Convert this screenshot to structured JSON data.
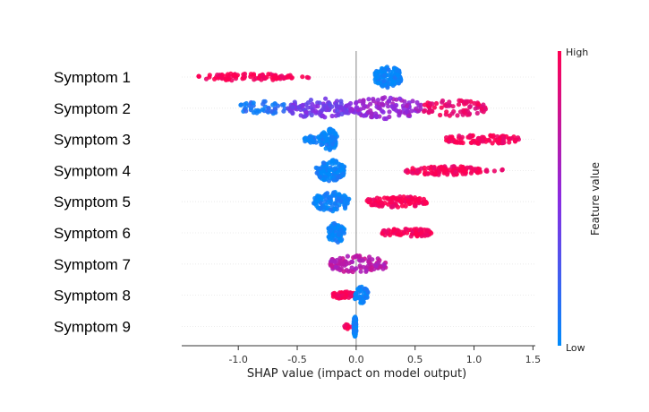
{
  "chart_data": {
    "type": "scatter",
    "subtype": "shap-beeswarm",
    "title": "",
    "xlabel": "SHAP value (impact on model output)",
    "xlim": [
      -1.48,
      1.52
    ],
    "xticks": [
      "-1.0",
      "-0.5",
      "0.0",
      "0.5",
      "1.0",
      "1.5"
    ],
    "xtick_values": [
      -1.0,
      -0.5,
      0.0,
      0.5,
      1.0,
      1.5
    ],
    "zero_line": true,
    "colorbar": {
      "label": "Feature value",
      "high_label": "High",
      "low_label": "Low",
      "low_color": "#008bfb",
      "high_color": "#ff0052"
    },
    "features": [
      {
        "name": "Symptom 1",
        "clusters": [
          {
            "lo": -1.34,
            "hi": -0.54,
            "c": 0.98,
            "n": 90,
            "h": 4
          },
          {
            "lo": -0.46,
            "hi": -0.37,
            "c": 0.95,
            "n": 3,
            "h": 1
          },
          {
            "lo": 0.16,
            "hi": 0.38,
            "c": 0.02,
            "n": 130,
            "h": 12
          }
        ]
      },
      {
        "name": "Symptom 2",
        "clusters": [
          {
            "lo": -0.98,
            "hi": -0.58,
            "c": 0.12,
            "n": 45,
            "h": 8
          },
          {
            "lo": -0.58,
            "hi": -0.05,
            "c": 0.42,
            "n": 110,
            "h": 11
          },
          {
            "lo": -0.05,
            "hi": 0.55,
            "c": 0.55,
            "n": 120,
            "h": 12
          },
          {
            "lo": 0.55,
            "hi": 1.1,
            "c": 0.92,
            "n": 80,
            "h": 9
          }
        ]
      },
      {
        "name": "Symptom 3",
        "clusters": [
          {
            "lo": -0.44,
            "hi": -0.3,
            "c": 0.03,
            "n": 25,
            "h": 4
          },
          {
            "lo": -0.3,
            "hi": -0.16,
            "c": 0.03,
            "n": 90,
            "h": 12
          },
          {
            "lo": 0.76,
            "hi": 1.38,
            "c": 0.98,
            "n": 95,
            "h": 5
          }
        ]
      },
      {
        "name": "Symptom 4",
        "clusters": [
          {
            "lo": -0.34,
            "hi": -0.1,
            "c": 0.03,
            "n": 120,
            "h": 12
          },
          {
            "lo": 0.42,
            "hi": 1.06,
            "c": 0.98,
            "n": 110,
            "h": 5
          },
          {
            "lo": 1.1,
            "hi": 1.26,
            "c": 0.98,
            "n": 6,
            "h": 2
          }
        ]
      },
      {
        "name": "Symptom 5",
        "clusters": [
          {
            "lo": -0.36,
            "hi": -0.06,
            "c": 0.03,
            "n": 110,
            "h": 11
          },
          {
            "lo": 0.08,
            "hi": 0.6,
            "c": 0.98,
            "n": 100,
            "h": 6
          }
        ]
      },
      {
        "name": "Symptom 6",
        "clusters": [
          {
            "lo": -0.24,
            "hi": -0.1,
            "c": 0.03,
            "n": 70,
            "h": 11
          },
          {
            "lo": 0.22,
            "hi": 0.64,
            "c": 0.98,
            "n": 75,
            "h": 5
          }
        ]
      },
      {
        "name": "Symptom 7",
        "clusters": [
          {
            "lo": -0.22,
            "hi": 0.25,
            "c": 0.7,
            "n": 100,
            "h": 10
          }
        ]
      },
      {
        "name": "Symptom 8",
        "clusters": [
          {
            "lo": -0.2,
            "hi": -0.01,
            "c": 0.98,
            "n": 50,
            "h": 4
          },
          {
            "lo": -0.01,
            "hi": 0.1,
            "c": 0.03,
            "n": 50,
            "h": 10
          }
        ]
      },
      {
        "name": "Symptom 9",
        "clusters": [
          {
            "lo": -0.1,
            "hi": -0.04,
            "c": 0.98,
            "n": 10,
            "h": 3
          },
          {
            "lo": -0.02,
            "hi": 0.0,
            "c": 0.03,
            "n": 90,
            "h": 12
          }
        ]
      }
    ]
  }
}
